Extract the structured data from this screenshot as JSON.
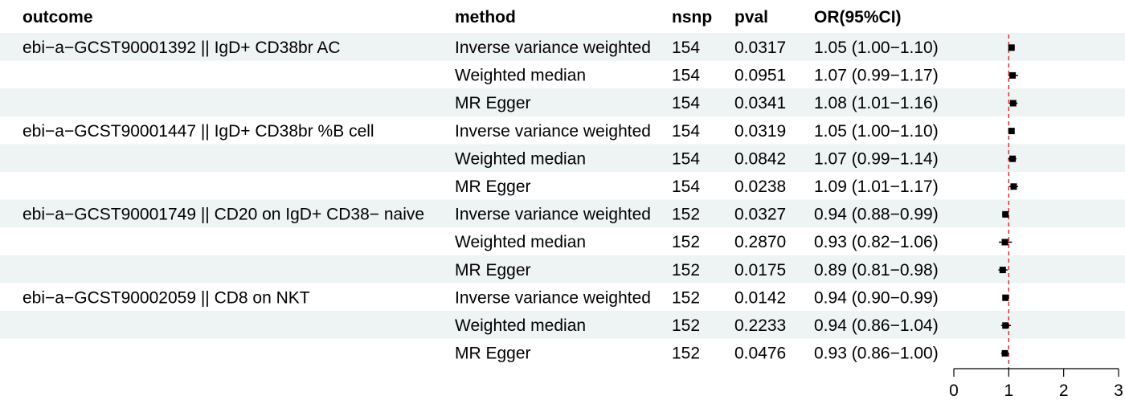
{
  "headers": {
    "outcome": "outcome",
    "method": "method",
    "nsnp": "nsnp",
    "pval": "pval",
    "or": "OR(95%CI)"
  },
  "colors": {
    "stripe": "#EEF3F4",
    "reference_line": "#D62728",
    "point": "#000000",
    "axis": "#000000"
  },
  "chart_data": {
    "type": "forest",
    "reference_value": 1,
    "xlim": [
      0,
      3
    ],
    "xticks": [
      0,
      1,
      2,
      3
    ],
    "rows": [
      {
        "outcome": "ebi−a−GCST90001392 || IgD+ CD38br AC",
        "method": "Inverse variance weighted",
        "nsnp": "154",
        "pval": "0.0317",
        "or_text": "1.05 (1.00−1.10)",
        "or": 1.05,
        "lo": 1.0,
        "hi": 1.1
      },
      {
        "outcome": "",
        "method": "Weighted median",
        "nsnp": "154",
        "pval": "0.0951",
        "or_text": "1.07 (0.99−1.17)",
        "or": 1.07,
        "lo": 0.99,
        "hi": 1.17
      },
      {
        "outcome": "",
        "method": "MR Egger",
        "nsnp": "154",
        "pval": "0.0341",
        "or_text": "1.08 (1.01−1.16)",
        "or": 1.08,
        "lo": 1.01,
        "hi": 1.16
      },
      {
        "outcome": "ebi−a−GCST90001447 || IgD+ CD38br %B cell",
        "method": "Inverse variance weighted",
        "nsnp": "154",
        "pval": "0.0319",
        "or_text": "1.05 (1.00−1.10)",
        "or": 1.05,
        "lo": 1.0,
        "hi": 1.1
      },
      {
        "outcome": "",
        "method": "Weighted median",
        "nsnp": "154",
        "pval": "0.0842",
        "or_text": "1.07 (0.99−1.14)",
        "or": 1.07,
        "lo": 0.99,
        "hi": 1.14
      },
      {
        "outcome": "",
        "method": "MR Egger",
        "nsnp": "154",
        "pval": "0.0238",
        "or_text": "1.09 (1.01−1.17)",
        "or": 1.09,
        "lo": 1.01,
        "hi": 1.17
      },
      {
        "outcome": "ebi−a−GCST90001749 || CD20 on IgD+ CD38− naive",
        "method": "Inverse variance weighted",
        "nsnp": "152",
        "pval": "0.0327",
        "or_text": "0.94 (0.88−0.99)",
        "or": 0.94,
        "lo": 0.88,
        "hi": 0.99
      },
      {
        "outcome": "",
        "method": "Weighted median",
        "nsnp": "152",
        "pval": "0.2870",
        "or_text": "0.93 (0.82−1.06)",
        "or": 0.93,
        "lo": 0.82,
        "hi": 1.06
      },
      {
        "outcome": "",
        "method": "MR Egger",
        "nsnp": "152",
        "pval": "0.0175",
        "or_text": "0.89 (0.81−0.98)",
        "or": 0.89,
        "lo": 0.81,
        "hi": 0.98
      },
      {
        "outcome": "ebi−a−GCST90002059 || CD8 on NKT",
        "method": "Inverse variance weighted",
        "nsnp": "152",
        "pval": "0.0142",
        "or_text": "0.94 (0.90−0.99)",
        "or": 0.94,
        "lo": 0.9,
        "hi": 0.99
      },
      {
        "outcome": "",
        "method": "Weighted median",
        "nsnp": "152",
        "pval": "0.2233",
        "or_text": "0.94 (0.86−1.04)",
        "or": 0.94,
        "lo": 0.86,
        "hi": 1.04
      },
      {
        "outcome": "",
        "method": "MR Egger",
        "nsnp": "152",
        "pval": "0.0476",
        "or_text": "0.93 (0.86−1.00)",
        "or": 0.93,
        "lo": 0.86,
        "hi": 1.0
      }
    ]
  }
}
